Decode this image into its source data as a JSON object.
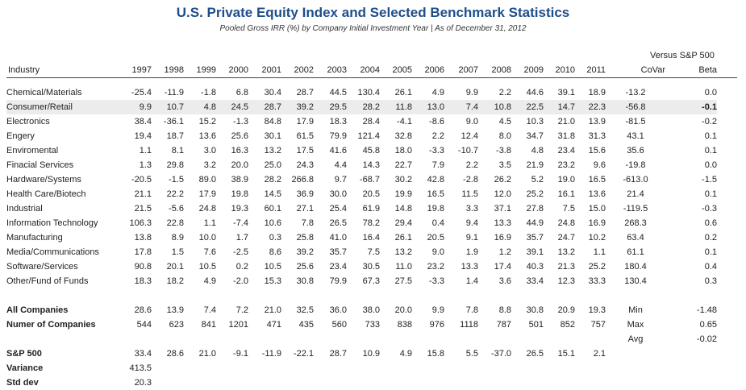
{
  "title": "U.S. Private Equity Index and Selected Benchmark Statistics",
  "subtitle": "Pooled Gross IRR (%) by Company Initial Investment Year | As of December 31, 2012",
  "versus_label": "Versus S&P 500",
  "header": {
    "industry": "Industry",
    "years": [
      "1997",
      "1998",
      "1999",
      "2000",
      "2001",
      "2002",
      "2003",
      "2004",
      "2005",
      "2006",
      "2007",
      "2008",
      "2009",
      "2010",
      "2011"
    ],
    "covar": "CoVar",
    "beta": "Beta"
  },
  "rows": [
    {
      "name": "Chemical/Materials",
      "values": [
        "-25.4",
        "-11.9",
        "-1.8",
        "6.8",
        "30.4",
        "28.7",
        "44.5",
        "130.4",
        "26.1",
        "4.9",
        "9.9",
        "2.2",
        "44.6",
        "39.1",
        "18.9"
      ],
      "covar": "-13.2",
      "beta": "0.0"
    },
    {
      "name": "Consumer/Retail",
      "values": [
        "9.9",
        "10.7",
        "4.8",
        "24.5",
        "28.7",
        "39.2",
        "29.5",
        "28.2",
        "11.8",
        "13.0",
        "7.4",
        "10.8",
        "22.5",
        "14.7",
        "22.3"
      ],
      "covar": "-56.8",
      "beta": "-0.1"
    },
    {
      "name": "Electronics",
      "values": [
        "38.4",
        "-36.1",
        "15.2",
        "-1.3",
        "84.8",
        "17.9",
        "18.3",
        "28.4",
        "-4.1",
        "-8.6",
        "9.0",
        "4.5",
        "10.3",
        "21.0",
        "13.9"
      ],
      "covar": "-81.5",
      "beta": "-0.2"
    },
    {
      "name": "Engery",
      "values": [
        "19.4",
        "18.7",
        "13.6",
        "25.6",
        "30.1",
        "61.5",
        "79.9",
        "121.4",
        "32.8",
        "2.2",
        "12.4",
        "8.0",
        "34.7",
        "31.8",
        "31.3"
      ],
      "covar": "43.1",
      "beta": "0.1"
    },
    {
      "name": "Enviromental",
      "values": [
        "1.1",
        "8.1",
        "3.0",
        "16.3",
        "13.2",
        "17.5",
        "41.6",
        "45.8",
        "18.0",
        "-3.3",
        "-10.7",
        "-3.8",
        "4.8",
        "23.4",
        "15.6"
      ],
      "covar": "35.6",
      "beta": "0.1"
    },
    {
      "name": "Finacial Services",
      "values": [
        "1.3",
        "29.8",
        "3.2",
        "20.0",
        "25.0",
        "24.3",
        "4.4",
        "14.3",
        "22.7",
        "7.9",
        "2.2",
        "3.5",
        "21.9",
        "23.2",
        "9.6"
      ],
      "covar": "-19.8",
      "beta": "0.0"
    },
    {
      "name": "Hardware/Systems",
      "values": [
        "-20.5",
        "-1.5",
        "89.0",
        "38.9",
        "28.2",
        "266.8",
        "9.7",
        "-68.7",
        "30.2",
        "42.8",
        "-2.8",
        "26.2",
        "5.2",
        "19.0",
        "16.5"
      ],
      "covar": "-613.0",
      "beta": "-1.5"
    },
    {
      "name": "Health Care/Biotech",
      "values": [
        "21.1",
        "22.2",
        "17.9",
        "19.8",
        "14.5",
        "36.9",
        "30.0",
        "20.5",
        "19.9",
        "16.5",
        "11.5",
        "12.0",
        "25.2",
        "16.1",
        "13.6"
      ],
      "covar": "21.4",
      "beta": "0.1"
    },
    {
      "name": "Industrial",
      "values": [
        "21.5",
        "-5.6",
        "24.8",
        "19.3",
        "60.1",
        "27.1",
        "25.4",
        "61.9",
        "14.8",
        "19.8",
        "3.3",
        "37.1",
        "27.8",
        "7.5",
        "15.0"
      ],
      "covar": "-119.5",
      "beta": "-0.3"
    },
    {
      "name": "Information Technology",
      "values": [
        "106.3",
        "22.8",
        "1.1",
        "-7.4",
        "10.6",
        "7.8",
        "26.5",
        "78.2",
        "29.4",
        "0.4",
        "9.4",
        "13.3",
        "44.9",
        "24.8",
        "16.9"
      ],
      "covar": "268.3",
      "beta": "0.6"
    },
    {
      "name": "Manufacturing",
      "values": [
        "13.8",
        "8.9",
        "10.0",
        "1.7",
        "0.3",
        "25.8",
        "41.0",
        "16.4",
        "26.1",
        "20.5",
        "9.1",
        "16.9",
        "35.7",
        "24.7",
        "10.2"
      ],
      "covar": "63.4",
      "beta": "0.2"
    },
    {
      "name": "Media/Communications",
      "values": [
        "17.8",
        "1.5",
        "7.6",
        "-2.5",
        "8.6",
        "39.2",
        "35.7",
        "7.5",
        "13.2",
        "9.0",
        "1.9",
        "1.2",
        "39.1",
        "13.2",
        "1.1"
      ],
      "covar": "61.1",
      "beta": "0.1"
    },
    {
      "name": "Software/Services",
      "values": [
        "90.8",
        "20.1",
        "10.5",
        "0.2",
        "10.5",
        "25.6",
        "23.4",
        "30.5",
        "11.0",
        "23.2",
        "13.3",
        "17.4",
        "40.3",
        "21.3",
        "25.2"
      ],
      "covar": "180.4",
      "beta": "0.4"
    },
    {
      "name": "Other/Fund of Funds",
      "values": [
        "18.3",
        "18.2",
        "4.9",
        "-2.0",
        "15.3",
        "30.8",
        "79.9",
        "67.3",
        "27.5",
        "-3.3",
        "1.4",
        "3.6",
        "33.4",
        "12.3",
        "33.3"
      ],
      "covar": "130.4",
      "beta": "0.3"
    }
  ],
  "all_companies": {
    "name": "All Companies",
    "values": [
      "28.6",
      "13.9",
      "7.4",
      "7.2",
      "21.0",
      "32.5",
      "36.0",
      "38.0",
      "20.0",
      "9.9",
      "7.8",
      "8.8",
      "30.8",
      "20.9",
      "19.3"
    ],
    "stat_label": "Min",
    "stat_value": "-1.48"
  },
  "num_companies": {
    "name": "Numer of Companies",
    "values": [
      "544",
      "623",
      "841",
      "1201",
      "471",
      "435",
      "560",
      "733",
      "838",
      "976",
      "1118",
      "787",
      "501",
      "852",
      "757"
    ],
    "stat_label": "Max",
    "stat_value": "0.65"
  },
  "avg": {
    "stat_label": "Avg",
    "stat_value": "-0.02"
  },
  "sp500": {
    "name": "S&P 500",
    "values": [
      "33.4",
      "28.6",
      "21.0",
      "-9.1",
      "-11.9",
      "-22.1",
      "28.7",
      "10.9",
      "4.9",
      "15.8",
      "5.5",
      "-37.0",
      "26.5",
      "15.1",
      "2.1"
    ]
  },
  "variance": {
    "name": "Variance",
    "value": "413.5"
  },
  "std_dev": {
    "name": "Std dev",
    "value": "20.3"
  }
}
